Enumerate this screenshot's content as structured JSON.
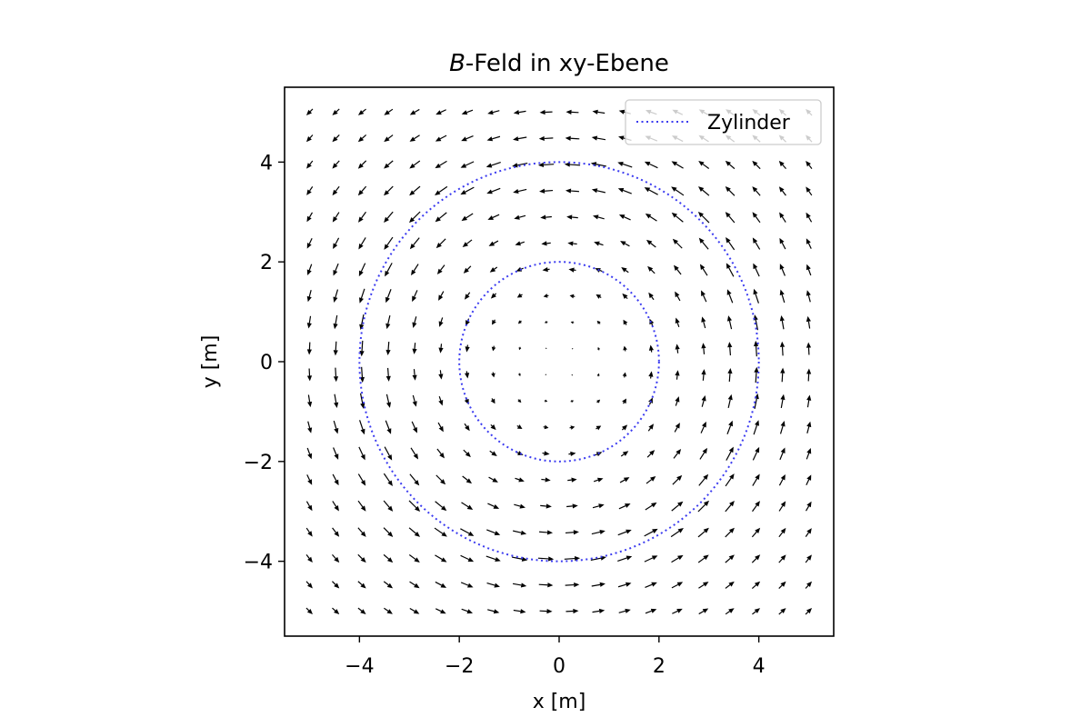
{
  "chart_data": {
    "type": "quiver",
    "title_prefix": "B",
    "title_suffix": "-Feld in xy-Ebene",
    "xlabel": "x [m]",
    "ylabel": "y [m]",
    "xlim": [
      -5.5,
      5.5
    ],
    "ylim": [
      -5.5,
      5.5
    ],
    "xticks": [
      -4,
      -2,
      0,
      2,
      4
    ],
    "yticks": [
      -4,
      -2,
      0,
      2,
      4
    ],
    "xtick_labels": [
      "−4",
      "−2",
      "0",
      "2",
      "4"
    ],
    "ytick_labels": [
      "−4",
      "−2",
      "0",
      "2",
      "4"
    ],
    "grid": false,
    "legend_position": "upper right",
    "field": {
      "grid_min": -5,
      "grid_max": 5,
      "grid_count": 20,
      "model": "azimuthal field of a cylindrical current, linear inside r<=4, ~1/r outside",
      "inner_radius": 4,
      "color": "#000000"
    },
    "series": [
      {
        "name": "Zylinder",
        "type": "circle",
        "radius": 4,
        "center": [
          0,
          0
        ],
        "style": "dotted",
        "color": "#3b3bf0",
        "in_legend": true
      },
      {
        "type": "circle",
        "radius": 2,
        "center": [
          0,
          0
        ],
        "style": "dotted",
        "color": "#3b3bf0",
        "in_legend": false
      }
    ]
  }
}
